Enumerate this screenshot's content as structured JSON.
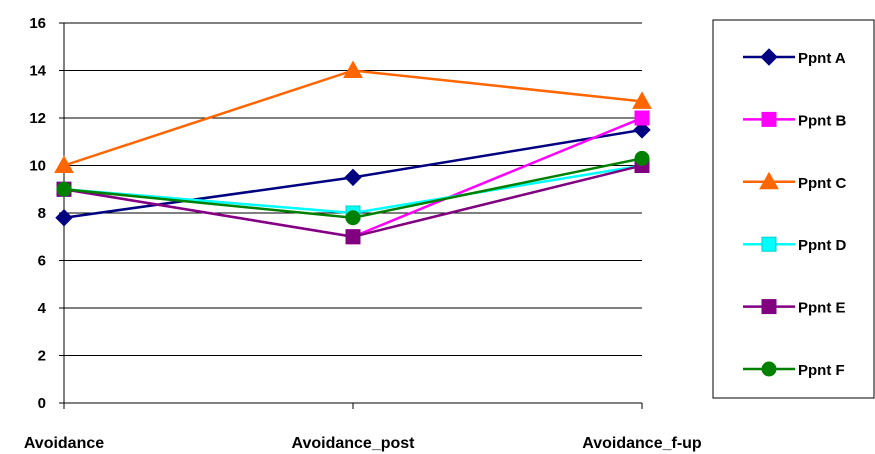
{
  "chart_data": {
    "type": "line",
    "categories": [
      "Avoidance",
      "Avoidance_post",
      "Avoidance_f-up"
    ],
    "ylim": [
      0,
      16
    ],
    "yticks": [
      0,
      2,
      4,
      6,
      8,
      10,
      12,
      14,
      16
    ],
    "grid": "horizontal",
    "legend_position": "right",
    "series": [
      {
        "name": "Ppnt A",
        "color": "#000080",
        "marker": "diamond",
        "values": [
          7.8,
          9.5,
          11.5
        ]
      },
      {
        "name": "Ppnt B",
        "color": "#FF00FF",
        "marker": "square",
        "values": [
          9.0,
          7.0,
          12.0
        ]
      },
      {
        "name": "Ppnt C",
        "color": "#FF6600",
        "marker": "triangle",
        "values": [
          10.0,
          14.0,
          12.7
        ]
      },
      {
        "name": "Ppnt D",
        "color": "#00FFFF",
        "marker": "square",
        "values": [
          9.0,
          8.0,
          10.0
        ]
      },
      {
        "name": "Ppnt E",
        "color": "#800080",
        "marker": "square",
        "values": [
          9.0,
          7.0,
          10.0
        ]
      },
      {
        "name": "Ppnt F",
        "color": "#008000",
        "marker": "circle",
        "values": [
          9.0,
          7.8,
          10.3
        ]
      }
    ]
  }
}
